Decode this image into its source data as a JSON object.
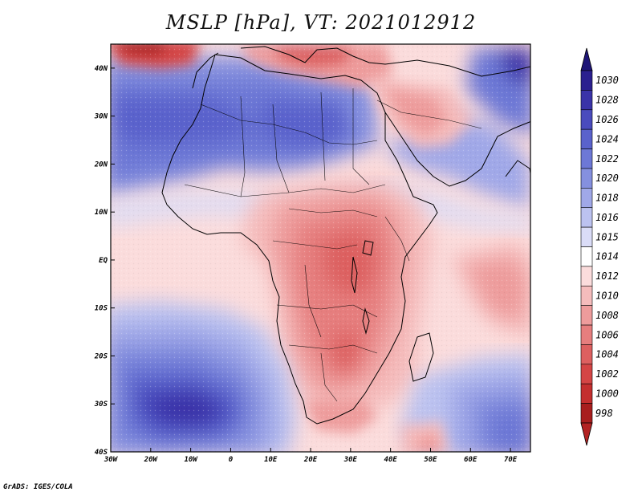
{
  "title": "MSLP [hPa], VT: 2021012912",
  "credit": "GrADS: IGES/COLA",
  "map": {
    "lon_range": [
      -30,
      75
    ],
    "lat_range": [
      -40,
      45
    ],
    "x_ticks": [
      {
        "lon": -30,
        "label": "30W"
      },
      {
        "lon": -20,
        "label": "20W"
      },
      {
        "lon": -10,
        "label": "10W"
      },
      {
        "lon": 0,
        "label": "0"
      },
      {
        "lon": 10,
        "label": "10E"
      },
      {
        "lon": 20,
        "label": "20E"
      },
      {
        "lon": 30,
        "label": "30E"
      },
      {
        "lon": 40,
        "label": "40E"
      },
      {
        "lon": 50,
        "label": "50E"
      },
      {
        "lon": 60,
        "label": "60E"
      },
      {
        "lon": 70,
        "label": "70E"
      }
    ],
    "y_ticks": [
      {
        "lat": 40,
        "label": "40N"
      },
      {
        "lat": 30,
        "label": "30N"
      },
      {
        "lat": 20,
        "label": "20N"
      },
      {
        "lat": 10,
        "label": "10N"
      },
      {
        "lat": 0,
        "label": "EQ"
      },
      {
        "lat": -10,
        "label": "10S"
      },
      {
        "lat": -20,
        "label": "20S"
      },
      {
        "lat": -30,
        "label": "30S"
      },
      {
        "lat": -40,
        "label": "40S"
      }
    ]
  },
  "colorbar": {
    "levels": [
      {
        "label": "1030",
        "color": "#2b1f8f"
      },
      {
        "label": "1028",
        "color": "#3a33a8"
      },
      {
        "label": "1026",
        "color": "#4a4bbd"
      },
      {
        "label": "1024",
        "color": "#5a62cc"
      },
      {
        "label": "1022",
        "color": "#6d78d6"
      },
      {
        "label": "1020",
        "color": "#8590df"
      },
      {
        "label": "1018",
        "color": "#a0a8e8"
      },
      {
        "label": "1016",
        "color": "#bcc2f0"
      },
      {
        "label": "1015",
        "color": "#dadcf7"
      },
      {
        "label": "1014",
        "color": "#ffffff"
      },
      {
        "label": "1012",
        "color": "#fbdcdc"
      },
      {
        "label": "1010",
        "color": "#f5bcbc"
      },
      {
        "label": "1008",
        "color": "#ee9c9c"
      },
      {
        "label": "1006",
        "color": "#e67e7e"
      },
      {
        "label": "1004",
        "color": "#dd6060"
      },
      {
        "label": "1002",
        "color": "#d44545"
      },
      {
        "label": "1000",
        "color": "#c42f2f"
      },
      {
        "label": "998",
        "color": "#a81e1e"
      }
    ],
    "top_arrow_color": "#1e1577",
    "bottom_arrow_color": "#b22222"
  }
}
